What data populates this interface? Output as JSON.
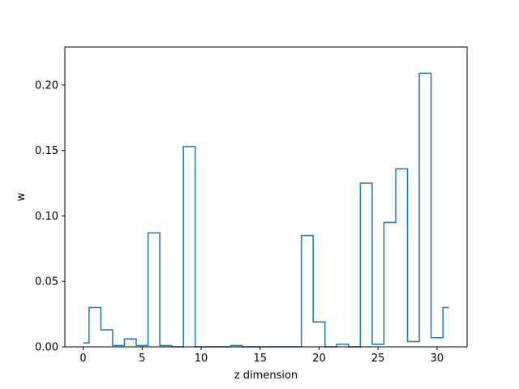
{
  "chart_data": {
    "type": "bar",
    "style": "step-outline",
    "xlabel": "z dimension",
    "ylabel": "w",
    "xlim": [
      -1.55,
      32.55
    ],
    "ylim": [
      0.0,
      0.229
    ],
    "grid": false,
    "x": [
      0,
      1,
      2,
      3,
      4,
      5,
      6,
      7,
      8,
      9,
      10,
      11,
      12,
      13,
      14,
      15,
      16,
      17,
      18,
      19,
      20,
      21,
      22,
      23,
      24,
      25,
      26,
      27,
      28,
      29,
      30,
      31
    ],
    "values": [
      0.003,
      0.03,
      0.013,
      0.001,
      0.006,
      0.001,
      0.087,
      0.001,
      0.0,
      0.153,
      0.0,
      0.0,
      0.0,
      0.001,
      0.0,
      0.0,
      0.0,
      0.0,
      0.0,
      0.085,
      0.019,
      0.0,
      0.002,
      0.0,
      0.125,
      0.002,
      0.095,
      0.136,
      0.004,
      0.209,
      0.007,
      0.03
    ],
    "xticks": [
      0,
      5,
      10,
      15,
      20,
      25,
      30
    ],
    "xtick_labels": [
      "0",
      "5",
      "10",
      "15",
      "20",
      "25",
      "30"
    ],
    "yticks": [
      0.0,
      0.05,
      0.1,
      0.15,
      0.2
    ],
    "ytick_labels": [
      "0.00",
      "0.05",
      "0.10",
      "0.15",
      "0.20"
    ],
    "series_color": "#1f77b4"
  }
}
